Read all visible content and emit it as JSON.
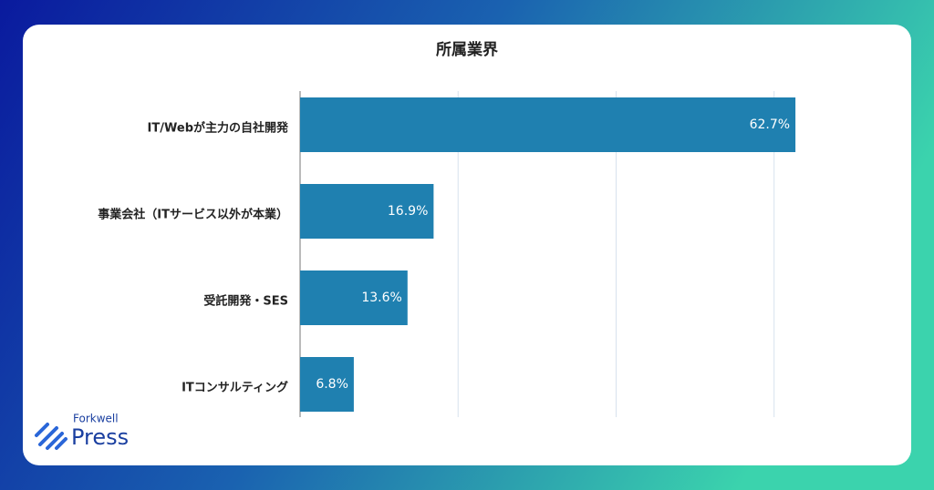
{
  "chart_data": {
    "type": "bar",
    "orientation": "horizontal",
    "title": "所属業界",
    "categories": [
      "IT/Webが主力の自社開発",
      "事業会社（ITサービス以外が本業）",
      "受託開発・SES",
      "ITコンサルティング"
    ],
    "values": [
      62.7,
      16.9,
      13.6,
      6.8
    ],
    "value_labels": [
      "62.7%",
      "16.9%",
      "13.6%",
      "6.8%"
    ],
    "color": "#1f80b0",
    "xlim": [
      0,
      65
    ],
    "xticks": [
      0,
      20,
      40,
      60
    ],
    "grid": true
  },
  "logo": {
    "top": "Forkwell",
    "main": "Press"
  }
}
